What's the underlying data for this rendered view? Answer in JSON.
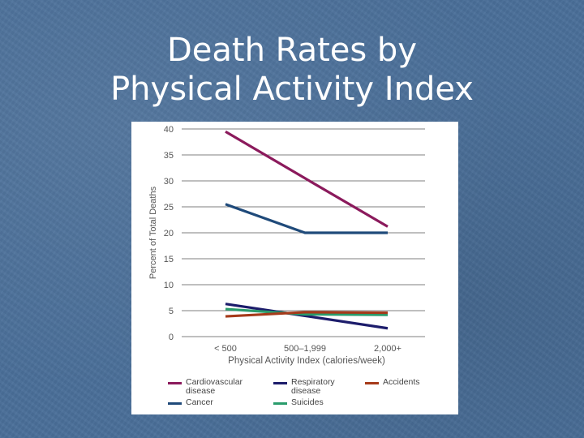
{
  "slide": {
    "title_line1": "Death Rates by",
    "title_line2": "Physical Activity Index"
  },
  "chart_data": {
    "type": "line",
    "title": "",
    "xlabel": "Physical Activity Index (calories/week)",
    "ylabel": "Percent of Total Deaths",
    "categories": [
      "< 500",
      "500–1,999",
      "2,000+"
    ],
    "ylim": [
      0,
      40
    ],
    "yticks": [
      0,
      5,
      10,
      15,
      20,
      25,
      30,
      35,
      40
    ],
    "grid": true,
    "legend_position": "bottom",
    "series": [
      {
        "name": "Cardiovascular disease",
        "legend_lines": [
          "Cardiovascular",
          "disease"
        ],
        "color": "#8b1a5c",
        "values": [
          39.5,
          30.5,
          21.2
        ]
      },
      {
        "name": "Cancer",
        "legend_lines": [
          "Cancer"
        ],
        "color": "#1f4a7a",
        "values": [
          25.5,
          20.0,
          20.0
        ]
      },
      {
        "name": "Respiratory disease",
        "legend_lines": [
          "Respiratory",
          "disease"
        ],
        "color": "#1c1c6b",
        "values": [
          6.3,
          4.0,
          1.6
        ]
      },
      {
        "name": "Suicides",
        "legend_lines": [
          "Suicides"
        ],
        "color": "#2a9c6c",
        "values": [
          5.3,
          4.3,
          4.2
        ]
      },
      {
        "name": "Accidents",
        "legend_lines": [
          "Accidents"
        ],
        "color": "#a63a1a",
        "values": [
          3.9,
          4.7,
          4.6
        ]
      }
    ]
  },
  "colors": {
    "background": "#4a6f99",
    "title_text": "#ffffff",
    "panel": "#ffffff",
    "grid": "#555555",
    "axis_text": "#555555"
  }
}
